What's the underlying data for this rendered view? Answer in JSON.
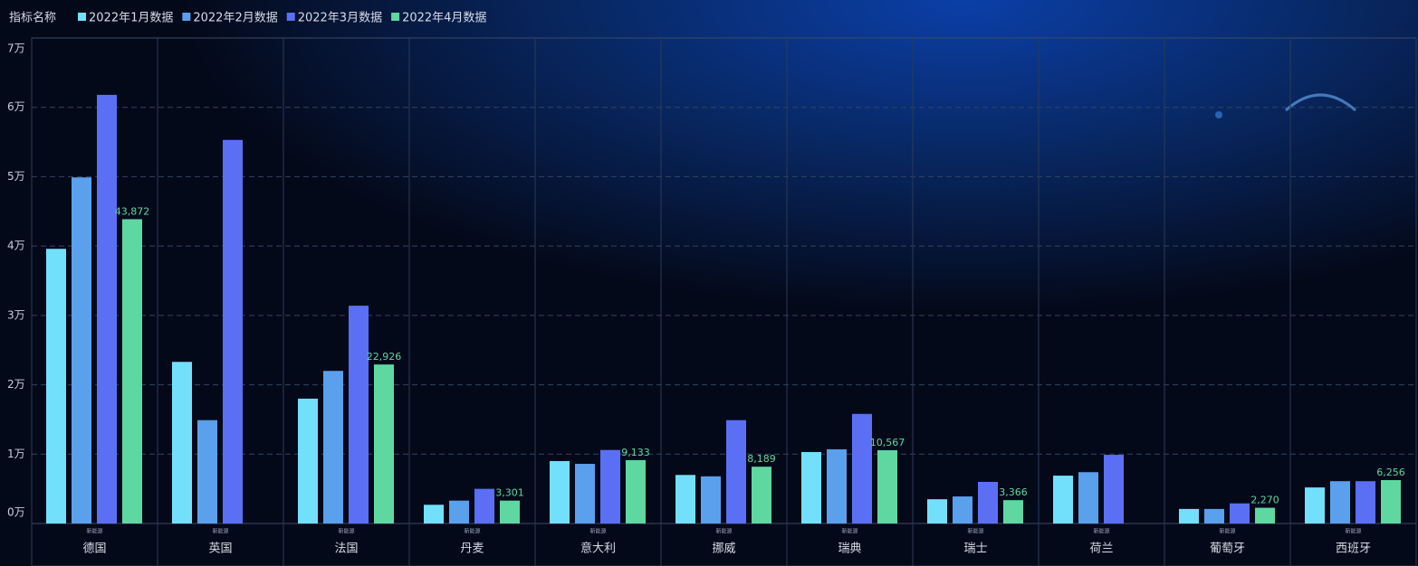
{
  "chart_data": {
    "type": "bar",
    "legend_title": "指标名称",
    "category_sublabel": "新能源",
    "categories": [
      "德国",
      "英国",
      "法国",
      "丹麦",
      "意大利",
      "挪威",
      "瑞典",
      "瑞士",
      "荷兰",
      "葡萄牙",
      "西班牙"
    ],
    "series": [
      {
        "name": "2022年1月数据",
        "color": "#73e0fb",
        "values": [
          39600,
          23300,
          18000,
          2700,
          9000,
          7000,
          10300,
          3500,
          6900,
          2100,
          5200
        ]
      },
      {
        "name": "2022年2月数据",
        "color": "#5aa0ec",
        "values": [
          49900,
          14900,
          22000,
          3300,
          8600,
          6800,
          10700,
          3900,
          7400,
          2100,
          6100
        ]
      },
      {
        "name": "2022年3月数据",
        "color": "#5b6ff5",
        "values": [
          61800,
          55300,
          31400,
          5000,
          10600,
          14900,
          15800,
          6000,
          9900,
          2900,
          6100
        ]
      },
      {
        "name": "2022年4月数据",
        "color": "#5ed8a0",
        "values": [
          43872,
          null,
          22926,
          3301,
          9133,
          8189,
          10567,
          3366,
          null,
          2270,
          6256
        ],
        "value_labels": [
          "43,872",
          null,
          "22,926",
          "3,301",
          "9,133",
          "8,189",
          "10,567",
          "3,366",
          null,
          "2,270",
          "6,256"
        ]
      }
    ],
    "ylim": [
      0,
      70000
    ],
    "yticks": [
      {
        "value": 0,
        "label": "0万"
      },
      {
        "value": 10000,
        "label": "1万"
      },
      {
        "value": 20000,
        "label": "2万"
      },
      {
        "value": 30000,
        "label": "3万"
      },
      {
        "value": 40000,
        "label": "4万"
      },
      {
        "value": 50000,
        "label": "5万"
      },
      {
        "value": 60000,
        "label": "6万"
      },
      {
        "value": 70000,
        "label": "7万"
      }
    ],
    "grid": true
  }
}
